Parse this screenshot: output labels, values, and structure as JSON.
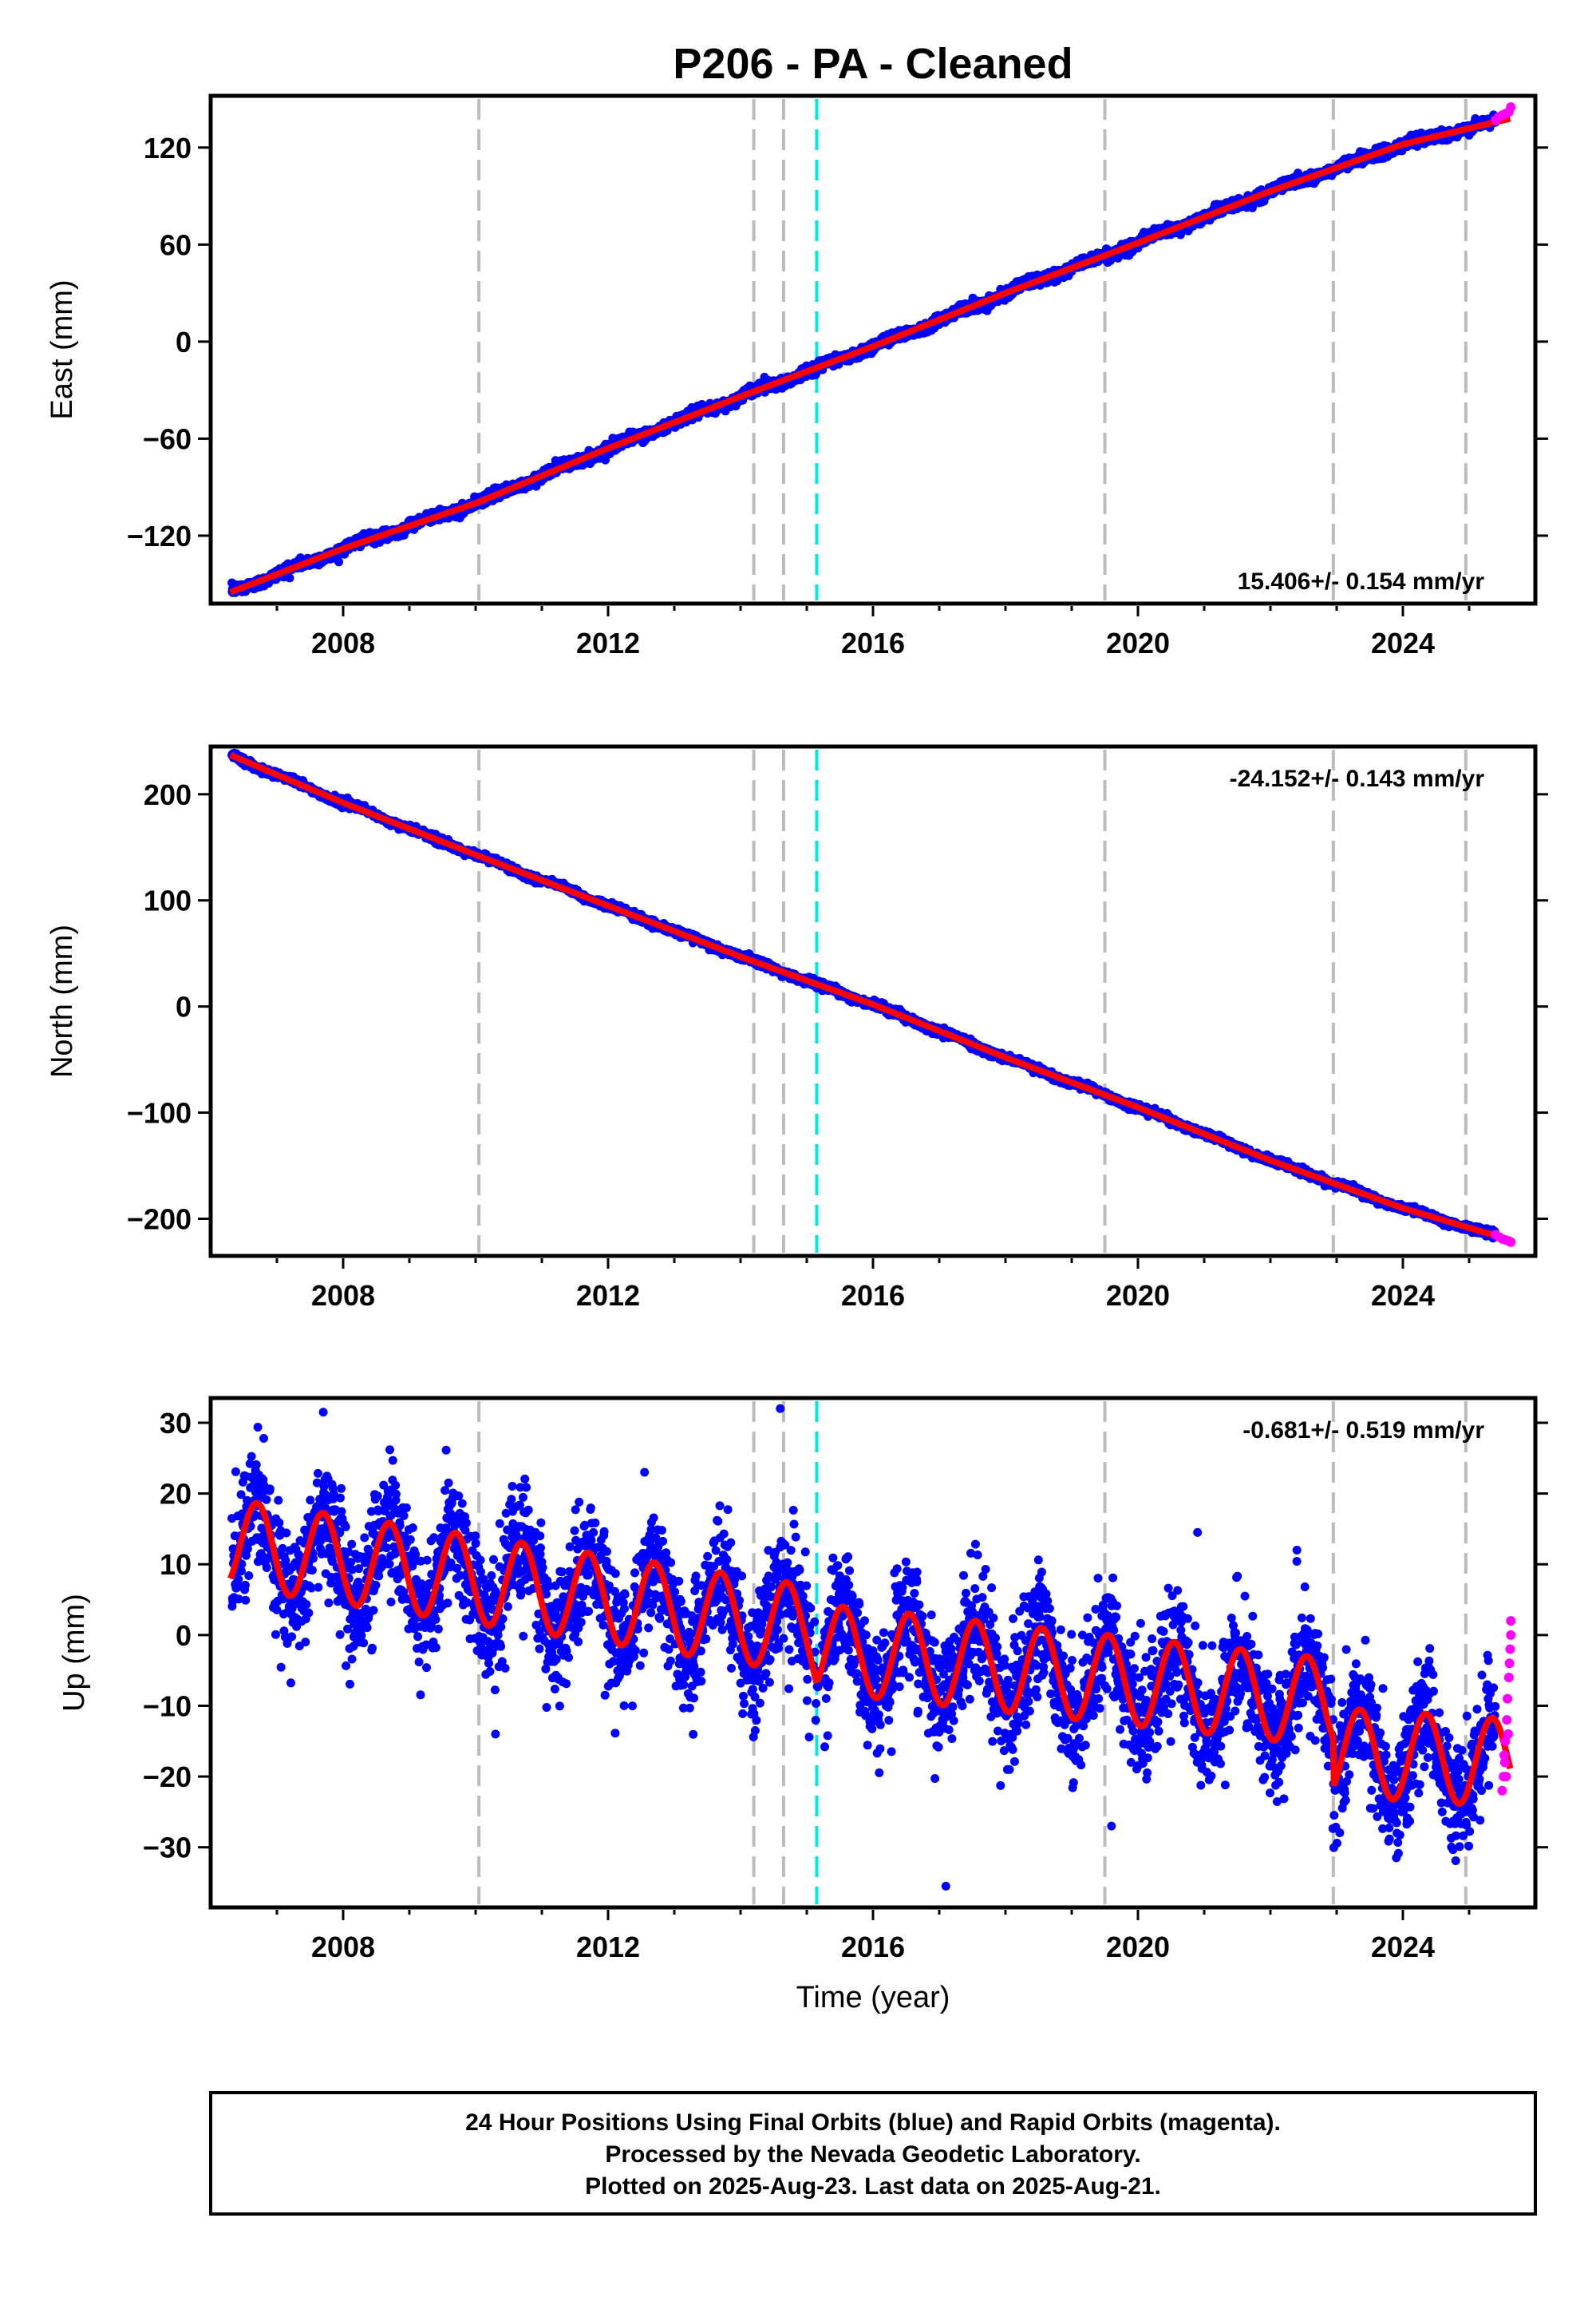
{
  "title": "P206  - PA - Cleaned",
  "colors": {
    "final_orbits": "#0000ff",
    "rapid_orbits": "#ff00ff",
    "model_fit": "#ff0000",
    "event_line_gray": "#bbbbbb",
    "event_line_cyan": "#00e5e5"
  },
  "chart_data": [
    {
      "type": "scatter",
      "name": "east",
      "ylabel": "East (mm)",
      "xlabel": "",
      "xlim": [
        2006.0,
        2026.0
      ],
      "ylim": [
        -162,
        152
      ],
      "xticks": [
        2008,
        2012,
        2016,
        2020,
        2024
      ],
      "yticks": [
        -120,
        -60,
        0,
        60,
        120
      ],
      "rate_label": "15.406+/- 0.154 mm/yr",
      "rate_label_position": "bottom-right",
      "fit_points": [
        [
          2006.3,
          -155
        ],
        [
          2008,
          -128
        ],
        [
          2010,
          -100
        ],
        [
          2012,
          -66
        ],
        [
          2014,
          -34
        ],
        [
          2016,
          -3
        ],
        [
          2018,
          30
        ],
        [
          2020,
          61
        ],
        [
          2022,
          93
        ],
        [
          2024,
          122
        ],
        [
          2025.62,
          138
        ]
      ],
      "rapid_points": [
        [
          2025.4,
          137
        ],
        [
          2025.45,
          139
        ],
        [
          2025.5,
          140
        ],
        [
          2025.55,
          141
        ],
        [
          2025.6,
          142
        ],
        [
          2025.63,
          145
        ]
      ],
      "event_lines": [
        {
          "x": 2010.05,
          "color": "gray"
        },
        {
          "x": 2014.2,
          "color": "gray"
        },
        {
          "x": 2014.65,
          "color": "gray"
        },
        {
          "x": 2015.15,
          "color": "cyan"
        },
        {
          "x": 2019.5,
          "color": "gray"
        },
        {
          "x": 2022.95,
          "color": "gray"
        },
        {
          "x": 2024.95,
          "color": "gray"
        }
      ]
    },
    {
      "type": "scatter",
      "name": "north",
      "ylabel": "North (mm)",
      "xlabel": "",
      "xlim": [
        2006.0,
        2026.0
      ],
      "ylim": [
        -235,
        245
      ],
      "xticks": [
        2008,
        2012,
        2016,
        2020,
        2024
      ],
      "yticks": [
        -200,
        -100,
        0,
        100,
        200
      ],
      "rate_label": "-24.152+/- 0.143 mm/yr",
      "rate_label_position": "top-right",
      "fit_points": [
        [
          2006.3,
          237
        ],
        [
          2008,
          192
        ],
        [
          2010,
          143
        ],
        [
          2012,
          95
        ],
        [
          2014,
          47
        ],
        [
          2016,
          2
        ],
        [
          2018,
          -48
        ],
        [
          2020,
          -95
        ],
        [
          2022,
          -145
        ],
        [
          2024,
          -190
        ],
        [
          2025.62,
          -220
        ]
      ],
      "rapid_points": [
        [
          2025.4,
          -215
        ],
        [
          2025.45,
          -217
        ],
        [
          2025.5,
          -219
        ],
        [
          2025.55,
          -220
        ],
        [
          2025.6,
          -221
        ],
        [
          2025.63,
          -222
        ]
      ],
      "event_lines": [
        {
          "x": 2010.05,
          "color": "gray"
        },
        {
          "x": 2014.2,
          "color": "gray"
        },
        {
          "x": 2014.65,
          "color": "gray"
        },
        {
          "x": 2015.15,
          "color": "cyan"
        },
        {
          "x": 2019.5,
          "color": "gray"
        },
        {
          "x": 2022.95,
          "color": "gray"
        },
        {
          "x": 2024.95,
          "color": "gray"
        }
      ]
    },
    {
      "type": "scatter",
      "name": "up",
      "ylabel": "Up (mm)",
      "xlabel": "Time (year)",
      "xlim": [
        2006.0,
        2026.0
      ],
      "ylim": [
        -38.5,
        33.5
      ],
      "xticks": [
        2008,
        2012,
        2016,
        2020,
        2024
      ],
      "yticks": [
        -30,
        -20,
        -10,
        0,
        10,
        20,
        30
      ],
      "rate_label": "-0.681+/- 0.519 mm/yr",
      "rate_label_position": "top-right",
      "fit_model": {
        "segments": [
          {
            "start": 2006.3,
            "end": 2014.9,
            "mean": 13,
            "slope": -1.4,
            "amplitude": 6.2,
            "phase": -0.15
          },
          {
            "start": 2015.15,
            "end": 2022.95,
            "mean": -1.8,
            "slope": -1.0,
            "amplitude": 6.2,
            "phase": -0.15
          },
          {
            "start": 2022.95,
            "end": 2025.62,
            "mean": -16.5,
            "slope": -0.6,
            "amplitude": 6.2,
            "phase": -0.15
          }
        ]
      },
      "rapid_points": [
        [
          2025.5,
          -22
        ],
        [
          2025.52,
          -20
        ],
        [
          2025.54,
          -18
        ],
        [
          2025.55,
          -15
        ],
        [
          2025.57,
          -12
        ],
        [
          2025.58,
          -9
        ],
        [
          2025.6,
          -6
        ],
        [
          2025.61,
          -4
        ],
        [
          2025.62,
          -2
        ],
        [
          2025.63,
          0
        ],
        [
          2025.63,
          2
        ],
        [
          2025.59,
          -14
        ],
        [
          2025.56,
          -20
        ],
        [
          2025.53,
          -17
        ]
      ],
      "outliers": [
        [
          2007.7,
          31.5
        ],
        [
          2014.6,
          32
        ],
        [
          2017.1,
          -35.5
        ],
        [
          2012.55,
          23
        ],
        [
          2020.9,
          14.5
        ],
        [
          2022.4,
          12
        ],
        [
          2019.6,
          -27
        ],
        [
          2010.3,
          -14
        ]
      ],
      "event_lines": [
        {
          "x": 2010.05,
          "color": "gray"
        },
        {
          "x": 2014.2,
          "color": "gray"
        },
        {
          "x": 2014.65,
          "color": "gray"
        },
        {
          "x": 2015.15,
          "color": "cyan"
        },
        {
          "x": 2019.5,
          "color": "gray"
        },
        {
          "x": 2022.95,
          "color": "gray"
        },
        {
          "x": 2024.95,
          "color": "gray"
        }
      ]
    }
  ],
  "footer": {
    "line1": "24 Hour Positions Using Final Orbits (blue) and Rapid Orbits (magenta).",
    "line2": "Processed by the Nevada Geodetic Laboratory.",
    "line3": "Plotted on 2025-Aug-23. Last data on 2025-Aug-21."
  }
}
